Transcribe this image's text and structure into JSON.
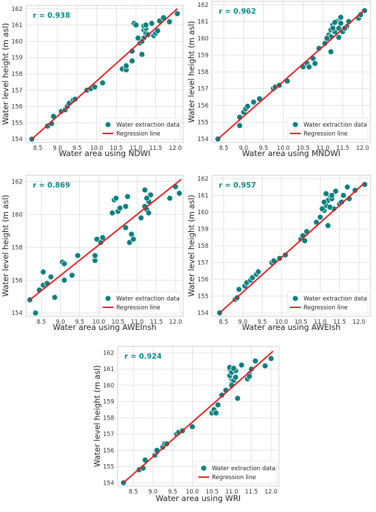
{
  "colors": {
    "points": "#0b8080",
    "point_edge": "#ffffff",
    "line": "#e31a1c",
    "r_text": "#0b8a8a",
    "grid": "#dcdcdc",
    "frame": "#cfcfcf"
  },
  "legend": {
    "points_label": "Water extraction data",
    "line_label": "Regression line"
  },
  "chart_data": [
    {
      "type": "scatter",
      "title": "",
      "r_label": "r = 0.938",
      "xlabel": "Water area using NDWI",
      "ylabel": "Water level height (m asl)",
      "xlim": [
        8.2,
        12.2
      ],
      "ylim": [
        153.8,
        162.2
      ],
      "xticks": [
        "8.5",
        "9.0",
        "9.5",
        "10.0",
        "10.5",
        "11.0",
        "11.5",
        "12.0"
      ],
      "yticks": [
        "154",
        "155",
        "156",
        "157",
        "158",
        "159",
        "160",
        "161",
        "162"
      ],
      "grid": true,
      "legend_position": "lower-right",
      "regression": {
        "x": [
          8.35,
          12.05
        ],
        "y": [
          154.0,
          162.0
        ]
      },
      "points": [
        [
          8.35,
          154.0
        ],
        [
          8.75,
          154.8
        ],
        [
          8.85,
          154.95
        ],
        [
          8.9,
          155.4
        ],
        [
          9.1,
          155.7
        ],
        [
          9.2,
          155.8
        ],
        [
          9.25,
          156.0
        ],
        [
          9.3,
          156.2
        ],
        [
          9.4,
          156.4
        ],
        [
          9.45,
          156.45
        ],
        [
          9.75,
          157.0
        ],
        [
          9.85,
          157.1
        ],
        [
          9.95,
          157.2
        ],
        [
          10.15,
          157.45
        ],
        [
          10.65,
          158.3
        ],
        [
          10.75,
          158.25
        ],
        [
          10.75,
          158.5
        ],
        [
          10.9,
          158.8
        ],
        [
          10.9,
          159.4
        ],
        [
          11.15,
          159.2
        ],
        [
          11.1,
          159.9
        ],
        [
          11.2,
          160.2
        ],
        [
          11.2,
          160.7
        ],
        [
          11.25,
          160.5
        ],
        [
          11.25,
          160.8
        ],
        [
          11.3,
          160.4
        ],
        [
          11.2,
          160.95
        ],
        [
          11.15,
          160.0
        ],
        [
          11.05,
          160.2
        ],
        [
          10.95,
          161.1
        ],
        [
          11.0,
          161.0
        ],
        [
          11.45,
          160.35
        ],
        [
          11.5,
          160.5
        ],
        [
          11.55,
          160.65
        ],
        [
          11.6,
          161.25
        ],
        [
          11.7,
          161.45
        ],
        [
          11.4,
          161.1
        ],
        [
          11.85,
          161.2
        ],
        [
          12.05,
          161.7
        ],
        [
          11.25,
          161.0
        ]
      ]
    },
    {
      "type": "scatter",
      "title": "",
      "r_label": "r = 0.962",
      "xlabel": "Water area using MNDWI",
      "ylabel": "",
      "xlim": [
        8.2,
        12.2
      ],
      "ylim": [
        153.8,
        162.2
      ],
      "xticks": [
        "8.5",
        "9.0",
        "9.5",
        "10.0",
        "10.5",
        "11.0",
        "11.5",
        "12.0"
      ],
      "yticks": [
        "154",
        "155",
        "156",
        "157",
        "158",
        "159",
        "160",
        "161",
        "162"
      ],
      "grid": true,
      "legend_position": "lower-right",
      "regression": {
        "x": [
          8.35,
          12.05
        ],
        "y": [
          154.0,
          161.7
        ]
      },
      "points": [
        [
          8.35,
          154.0
        ],
        [
          8.9,
          154.8
        ],
        [
          8.9,
          155.3
        ],
        [
          9.0,
          155.6
        ],
        [
          9.05,
          155.8
        ],
        [
          9.1,
          155.95
        ],
        [
          9.25,
          156.2
        ],
        [
          9.4,
          156.4
        ],
        [
          9.75,
          157.0
        ],
        [
          9.8,
          157.1
        ],
        [
          9.9,
          157.2
        ],
        [
          10.1,
          157.45
        ],
        [
          10.5,
          158.3
        ],
        [
          10.6,
          158.5
        ],
        [
          10.65,
          158.3
        ],
        [
          10.75,
          158.8
        ],
        [
          10.8,
          158.5
        ],
        [
          10.9,
          159.4
        ],
        [
          11.2,
          159.2
        ],
        [
          11.05,
          159.7
        ],
        [
          11.15,
          160.2
        ],
        [
          11.2,
          160.5
        ],
        [
          11.25,
          160.8
        ],
        [
          11.3,
          160.4
        ],
        [
          11.35,
          161.0
        ],
        [
          11.25,
          160.6
        ],
        [
          11.4,
          160.6
        ],
        [
          11.45,
          160.9
        ],
        [
          11.45,
          161.25
        ],
        [
          11.5,
          160.4
        ],
        [
          11.6,
          160.7
        ],
        [
          11.65,
          161.0
        ],
        [
          11.9,
          161.2
        ],
        [
          11.95,
          161.4
        ],
        [
          12.05,
          161.65
        ],
        [
          11.2,
          160.1
        ],
        [
          11.3,
          160.95
        ],
        [
          11.4,
          160.05
        ],
        [
          11.1,
          160.0
        ],
        [
          11.55,
          160.6
        ]
      ]
    },
    {
      "type": "scatter",
      "title": "",
      "r_label": "r = 0.869",
      "xlabel": "Water area using AWEInsh",
      "ylabel": "Water level height (m asl)",
      "xlim": [
        8.1,
        12.2
      ],
      "ylim": [
        153.8,
        162.4
      ],
      "xticks": [
        "8.5",
        "9.0",
        "9.5",
        "10.0",
        "10.5",
        "11.0",
        "11.5",
        "12.0"
      ],
      "yticks": [
        "154",
        "156",
        "158",
        "160",
        "162"
      ],
      "grid": true,
      "legend_position": "lower-right",
      "regression": {
        "x": [
          8.2,
          12.15
        ],
        "y": [
          154.8,
          162.15
        ]
      },
      "points": [
        [
          8.2,
          154.8
        ],
        [
          8.35,
          154.0
        ],
        [
          8.45,
          155.4
        ],
        [
          8.55,
          155.7
        ],
        [
          8.55,
          156.5
        ],
        [
          8.65,
          155.8
        ],
        [
          8.75,
          156.2
        ],
        [
          8.85,
          154.95
        ],
        [
          9.05,
          157.1
        ],
        [
          9.1,
          157.0
        ],
        [
          9.1,
          156.0
        ],
        [
          9.3,
          156.3
        ],
        [
          9.45,
          157.5
        ],
        [
          9.9,
          157.2
        ],
        [
          9.9,
          157.5
        ],
        [
          9.95,
          158.5
        ],
        [
          10.05,
          158.3
        ],
        [
          10.1,
          158.6
        ],
        [
          10.35,
          160.1
        ],
        [
          10.4,
          160.9
        ],
        [
          10.45,
          161.0
        ],
        [
          10.5,
          160.2
        ],
        [
          10.55,
          160.4
        ],
        [
          10.7,
          160.5
        ],
        [
          10.75,
          161.1
        ],
        [
          10.7,
          159.2
        ],
        [
          10.8,
          158.3
        ],
        [
          10.85,
          158.8
        ],
        [
          10.9,
          158.5
        ],
        [
          11.1,
          159.8
        ],
        [
          11.2,
          161.5
        ],
        [
          11.2,
          160.5
        ],
        [
          11.25,
          160.3
        ],
        [
          11.3,
          160.8
        ],
        [
          11.3,
          160.1
        ],
        [
          11.35,
          161.2
        ],
        [
          11.25,
          161.0
        ],
        [
          11.85,
          161.0
        ],
        [
          12.0,
          161.7
        ],
        [
          12.1,
          161.3
        ]
      ]
    },
    {
      "type": "scatter",
      "title": "",
      "r_label": "r = 0.957",
      "xlabel": "Water area using AWEIsh",
      "ylabel": "",
      "xlim": [
        8.2,
        12.3
      ],
      "ylim": [
        153.8,
        162.2
      ],
      "xticks": [
        "8.5",
        "9.0",
        "9.5",
        "10.0",
        "10.5",
        "11.0",
        "11.5",
        "12.0"
      ],
      "yticks": [
        "154",
        "155",
        "156",
        "157",
        "158",
        "159",
        "160",
        "161",
        "162"
      ],
      "grid": true,
      "legend_position": "lower-right",
      "regression": {
        "x": [
          8.4,
          12.15
        ],
        "y": [
          154.0,
          161.75
        ]
      },
      "points": [
        [
          8.4,
          154.0
        ],
        [
          8.8,
          154.8
        ],
        [
          8.85,
          154.9
        ],
        [
          8.9,
          155.4
        ],
        [
          9.05,
          155.6
        ],
        [
          9.1,
          155.8
        ],
        [
          9.2,
          155.95
        ],
        [
          9.25,
          156.1
        ],
        [
          9.35,
          156.3
        ],
        [
          9.4,
          156.45
        ],
        [
          9.75,
          157.0
        ],
        [
          9.8,
          157.1
        ],
        [
          9.95,
          157.25
        ],
        [
          10.1,
          157.45
        ],
        [
          10.5,
          158.4
        ],
        [
          10.55,
          158.6
        ],
        [
          10.65,
          158.85
        ],
        [
          10.6,
          158.3
        ],
        [
          10.9,
          159.4
        ],
        [
          11.0,
          159.7
        ],
        [
          11.1,
          160.1
        ],
        [
          11.15,
          160.4
        ],
        [
          11.2,
          160.7
        ],
        [
          11.25,
          161.0
        ],
        [
          11.2,
          159.2
        ],
        [
          11.35,
          160.2
        ],
        [
          11.5,
          160.5
        ],
        [
          11.55,
          160.6
        ],
        [
          11.6,
          161.0
        ],
        [
          11.7,
          161.5
        ],
        [
          11.75,
          160.8
        ],
        [
          11.9,
          161.3
        ],
        [
          12.15,
          161.65
        ],
        [
          11.3,
          160.8
        ],
        [
          11.25,
          160.3
        ],
        [
          11.15,
          161.1
        ],
        [
          11.4,
          161.25
        ],
        [
          11.1,
          160.6
        ],
        [
          11.3,
          161.0
        ],
        [
          11.05,
          160.2
        ]
      ]
    },
    {
      "type": "scatter",
      "title": "",
      "r_label": "r = 0.924",
      "xlabel": "Water area using WRI",
      "ylabel": "Water level height (m asl)",
      "xlim": [
        8.1,
        12.2
      ],
      "ylim": [
        153.8,
        162.4
      ],
      "xticks": [
        "8.5",
        "9.0",
        "9.5",
        "10.0",
        "10.5",
        "11.0",
        "11.5",
        "12.0"
      ],
      "yticks": [
        "154",
        "155",
        "156",
        "157",
        "158",
        "159",
        "160",
        "161",
        "162"
      ],
      "grid": true,
      "legend_position": "lower-right",
      "regression": {
        "x": [
          8.25,
          12.05
        ],
        "y": [
          154.0,
          162.1
        ]
      },
      "points": [
        [
          8.25,
          154.0
        ],
        [
          8.65,
          154.8
        ],
        [
          8.75,
          154.9
        ],
        [
          8.8,
          155.4
        ],
        [
          9.05,
          155.7
        ],
        [
          9.1,
          155.9
        ],
        [
          9.1,
          156.0
        ],
        [
          9.25,
          156.2
        ],
        [
          9.3,
          156.4
        ],
        [
          9.35,
          156.4
        ],
        [
          9.6,
          157.0
        ],
        [
          9.65,
          157.1
        ],
        [
          9.75,
          157.2
        ],
        [
          10.0,
          157.45
        ],
        [
          10.5,
          158.3
        ],
        [
          10.55,
          158.5
        ],
        [
          10.6,
          158.3
        ],
        [
          10.65,
          158.8
        ],
        [
          10.75,
          159.4
        ],
        [
          10.85,
          159.7
        ],
        [
          11.0,
          160.1
        ],
        [
          11.0,
          160.4
        ],
        [
          10.95,
          160.6
        ],
        [
          10.95,
          161.0
        ],
        [
          11.0,
          160.8
        ],
        [
          11.05,
          160.3
        ],
        [
          11.1,
          160.9
        ],
        [
          10.95,
          161.1
        ],
        [
          11.15,
          159.2
        ],
        [
          11.25,
          161.25
        ],
        [
          11.4,
          160.4
        ],
        [
          11.45,
          160.7
        ],
        [
          11.5,
          161.0
        ],
        [
          11.6,
          161.5
        ],
        [
          11.85,
          161.2
        ],
        [
          12.0,
          161.65
        ],
        [
          11.05,
          161.05
        ],
        [
          11.1,
          160.5
        ],
        [
          11.0,
          160.0
        ],
        [
          11.45,
          160.55
        ]
      ]
    }
  ]
}
